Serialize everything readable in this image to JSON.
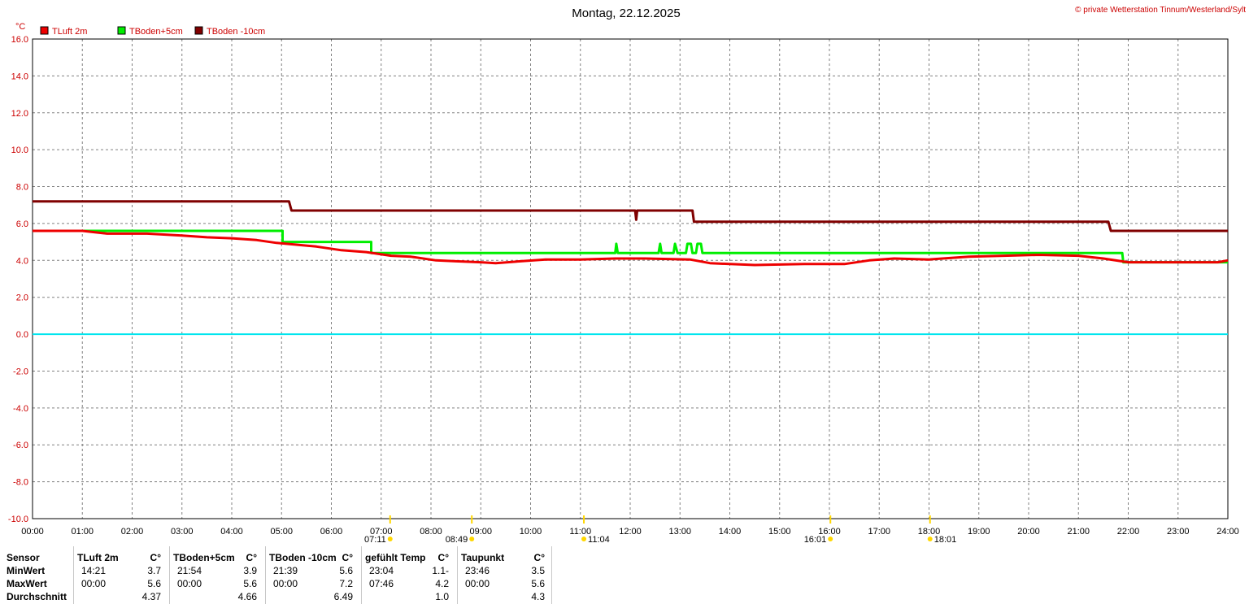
{
  "header": {
    "date_title": "Montag, 22.12.2025",
    "copyright": "© private Wetterstation Tinnum/Westerland/Sylt",
    "y_unit": "°C"
  },
  "chart_data": {
    "type": "line",
    "title": "Montag, 22.12.2025",
    "ylabel": "°C",
    "ylim": [
      -10,
      16
    ],
    "yticks": [
      "16.0",
      "14.0",
      "12.0",
      "10.0",
      "8.0",
      "6.0",
      "4.0",
      "2.0",
      "0.0",
      "-2.0",
      "-4.0",
      "-6.0",
      "-8.0",
      "-10.0"
    ],
    "xlim": [
      0,
      24
    ],
    "xticks": [
      "00:00",
      "01:00",
      "02:00",
      "03:00",
      "04:00",
      "05:00",
      "06:00",
      "07:00",
      "08:00",
      "09:00",
      "10:00",
      "11:00",
      "12:00",
      "13:00",
      "14:00",
      "15:00",
      "16:00",
      "17:00",
      "18:00",
      "19:00",
      "20:00",
      "21:00",
      "22:00",
      "23:00",
      "24:00"
    ],
    "grid": true,
    "legend_position": "top-left",
    "reference_line": {
      "y": 0,
      "color": "#00e5ee"
    },
    "series": [
      {
        "name": "TLuft 2m",
        "color": "#ee0000",
        "points": [
          [
            0,
            5.6
          ],
          [
            0.5,
            5.6
          ],
          [
            1,
            5.6
          ],
          [
            1.5,
            5.45
          ],
          [
            2,
            5.45
          ],
          [
            2.3,
            5.45
          ],
          [
            3,
            5.35
          ],
          [
            3.5,
            5.25
          ],
          [
            4,
            5.2
          ],
          [
            4.5,
            5.1
          ],
          [
            4.9,
            4.95
          ],
          [
            5.3,
            4.85
          ],
          [
            5.7,
            4.75
          ],
          [
            6.2,
            4.55
          ],
          [
            6.7,
            4.45
          ],
          [
            7.2,
            4.25
          ],
          [
            7.6,
            4.2
          ],
          [
            8.1,
            4.0
          ],
          [
            8.5,
            3.95
          ],
          [
            9,
            3.9
          ],
          [
            9.3,
            3.85
          ],
          [
            9.8,
            3.95
          ],
          [
            10.3,
            4.05
          ],
          [
            11,
            4.05
          ],
          [
            11.7,
            4.1
          ],
          [
            12.3,
            4.1
          ],
          [
            13.2,
            4.05
          ],
          [
            13.6,
            3.85
          ],
          [
            14,
            3.8
          ],
          [
            14.5,
            3.75
          ],
          [
            15.5,
            3.8
          ],
          [
            16.3,
            3.8
          ],
          [
            16.8,
            4.0
          ],
          [
            17.3,
            4.1
          ],
          [
            18,
            4.05
          ],
          [
            18.8,
            4.2
          ],
          [
            19.5,
            4.25
          ],
          [
            20.2,
            4.3
          ],
          [
            21,
            4.25
          ],
          [
            21.5,
            4.1
          ],
          [
            22,
            3.9
          ],
          [
            23,
            3.9
          ],
          [
            23.8,
            3.9
          ],
          [
            24,
            4.0
          ]
        ]
      },
      {
        "name": "TBoden+5cm",
        "color": "#00ee00",
        "points": [
          [
            0,
            5.6
          ],
          [
            5.02,
            5.6
          ],
          [
            5.02,
            5.0
          ],
          [
            6.8,
            5.0
          ],
          [
            6.8,
            4.4
          ],
          [
            11.7,
            4.4
          ],
          [
            11.72,
            4.9
          ],
          [
            11.75,
            4.4
          ],
          [
            12.57,
            4.4
          ],
          [
            12.6,
            4.9
          ],
          [
            12.63,
            4.4
          ],
          [
            12.87,
            4.4
          ],
          [
            12.9,
            4.9
          ],
          [
            12.95,
            4.4
          ],
          [
            13.12,
            4.4
          ],
          [
            13.15,
            4.9
          ],
          [
            13.22,
            4.9
          ],
          [
            13.25,
            4.4
          ],
          [
            13.32,
            4.4
          ],
          [
            13.35,
            4.9
          ],
          [
            13.42,
            4.9
          ],
          [
            13.45,
            4.4
          ],
          [
            21.88,
            4.4
          ],
          [
            21.9,
            3.9
          ],
          [
            24,
            3.9
          ]
        ]
      },
      {
        "name": "TBoden -10cm",
        "color": "#800000",
        "points": [
          [
            0,
            7.2
          ],
          [
            5.15,
            7.2
          ],
          [
            5.2,
            6.7
          ],
          [
            12.1,
            6.7
          ],
          [
            12.12,
            6.2
          ],
          [
            12.14,
            6.7
          ],
          [
            13.25,
            6.7
          ],
          [
            13.28,
            6.1
          ],
          [
            21.6,
            6.1
          ],
          [
            21.65,
            5.6
          ],
          [
            24,
            5.6
          ]
        ]
      }
    ]
  },
  "sun_markers": [
    {
      "label": "07:11",
      "hour": 7.18
    },
    {
      "label": "08:49",
      "hour": 8.82
    },
    {
      "label": "11:04",
      "hour": 11.07
    },
    {
      "label": "16:01",
      "hour": 16.02
    },
    {
      "label": "18:01",
      "hour": 18.02
    }
  ],
  "stats": {
    "row_labels": [
      "Sensor",
      "MinWert",
      "MaxWert",
      "Durchschnitt"
    ],
    "columns": [
      {
        "name": "TLuft 2m",
        "unit": "°C",
        "min_time": "14:21",
        "min": "3.7",
        "max_time": "00:00",
        "max": "5.6",
        "avg": "4.37"
      },
      {
        "name": "TBoden+5cm",
        "unit": "°C",
        "min_time": "21:54",
        "min": "3.9",
        "max_time": "00:00",
        "max": "5.6",
        "avg": "4.66"
      },
      {
        "name": "TBoden -10cm",
        "unit": "°C",
        "min_time": "21:39",
        "min": "5.6",
        "max_time": "00:00",
        "max": "7.2",
        "avg": "6.49"
      },
      {
        "name": "gefühlt Temp",
        "unit": "°C",
        "min_time": "23:04",
        "min": "-1.1",
        "max_time": "07:46",
        "max": "4.2",
        "avg": "1.0"
      },
      {
        "name": "Taupunkt",
        "unit": "°C",
        "min_time": "23:46",
        "min": "3.5",
        "max_time": "00:00",
        "max": "5.6",
        "avg": "4.3"
      }
    ]
  }
}
